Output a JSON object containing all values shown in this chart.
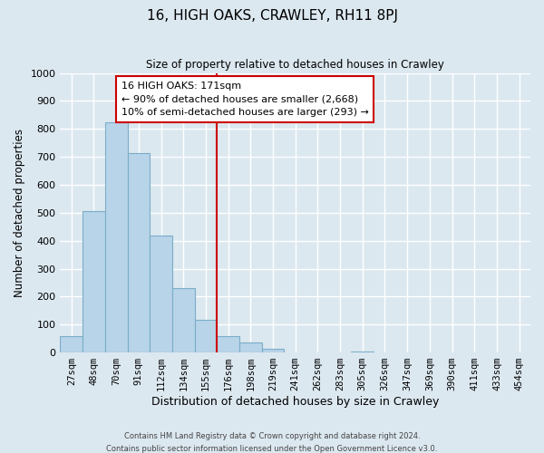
{
  "title": "16, HIGH OAKS, CRAWLEY, RH11 8PJ",
  "subtitle": "Size of property relative to detached houses in Crawley",
  "xlabel": "Distribution of detached houses by size in Crawley",
  "ylabel": "Number of detached properties",
  "bar_labels": [
    "27sqm",
    "48sqm",
    "70sqm",
    "91sqm",
    "112sqm",
    "134sqm",
    "155sqm",
    "176sqm",
    "198sqm",
    "219sqm",
    "241sqm",
    "262sqm",
    "283sqm",
    "305sqm",
    "326sqm",
    "347sqm",
    "369sqm",
    "390sqm",
    "411sqm",
    "433sqm",
    "454sqm"
  ],
  "bar_values": [
    57,
    505,
    825,
    712,
    418,
    232,
    118,
    57,
    35,
    12,
    0,
    0,
    0,
    5,
    0,
    0,
    0,
    0,
    0,
    0,
    0
  ],
  "bar_color": "#b8d4e8",
  "bar_edge_color": "#7aaec8",
  "vline_index": 7,
  "vline_color": "#cc0000",
  "annotation_title": "16 HIGH OAKS: 171sqm",
  "annotation_line1": "← 90% of detached houses are smaller (2,668)",
  "annotation_line2": "10% of semi-detached houses are larger (293) →",
  "annotation_box_color": "#ffffff",
  "annotation_box_edge": "#cc0000",
  "ylim": [
    0,
    1000
  ],
  "yticks": [
    0,
    100,
    200,
    300,
    400,
    500,
    600,
    700,
    800,
    900,
    1000
  ],
  "footer1": "Contains HM Land Registry data © Crown copyright and database right 2024.",
  "footer2": "Contains public sector information licensed under the Open Government Licence v3.0.",
  "bg_color": "#dce8f0",
  "plot_bg_color": "#dce8f0",
  "grid_color": "#ffffff"
}
